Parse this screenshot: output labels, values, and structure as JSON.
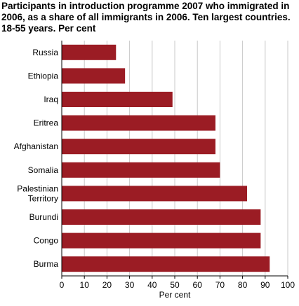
{
  "chart_data": {
    "type": "bar",
    "orientation": "horizontal",
    "title_lines": [
      "Participants in introduction programme 2007 who immigrated in",
      "2006, as a share of all immigrants in 2006. Ten largest countries.",
      "18-55 years. Per cent"
    ],
    "categories": [
      [
        "Russia"
      ],
      [
        "Ethiopia"
      ],
      [
        "Iraq"
      ],
      [
        "Eritrea"
      ],
      [
        "Afghanistan"
      ],
      [
        "Somalia"
      ],
      [
        "Palestinian",
        "Territory"
      ],
      [
        "Burundi"
      ],
      [
        "Congo"
      ],
      [
        "Burma"
      ]
    ],
    "values": [
      24,
      28,
      49,
      68,
      68,
      70,
      82,
      88,
      88,
      92
    ],
    "xlabel": "Per cent",
    "xlim": [
      0,
      100
    ],
    "xticks": [
      0,
      10,
      20,
      30,
      40,
      50,
      60,
      70,
      80,
      90,
      100
    ],
    "grid": "vertical",
    "bar_color": "#9b1c24",
    "grid_color": "#c8c8c8"
  }
}
